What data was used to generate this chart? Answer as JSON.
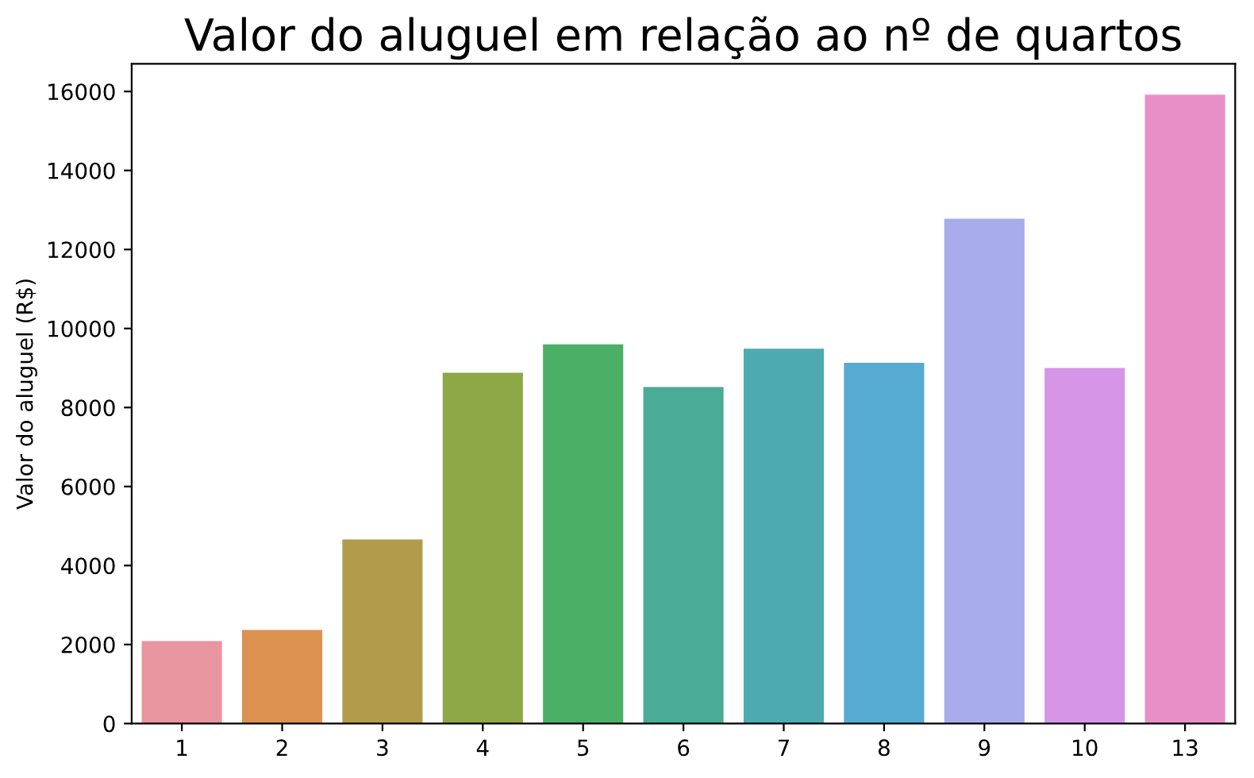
{
  "chart_data": {
    "type": "bar",
    "title": "Valor do aluguel em relação ao nº de quartos",
    "ylabel": "Valor do aluguel (R$)",
    "categories": [
      "1",
      "2",
      "3",
      "4",
      "5",
      "6",
      "7",
      "8",
      "9",
      "10",
      "13"
    ],
    "values": [
      2090,
      2370,
      4660,
      8880,
      9600,
      8520,
      9490,
      9130,
      12780,
      9000,
      15920
    ],
    "colors": [
      "#e8959f",
      "#dc9150",
      "#b29c4b",
      "#8ea747",
      "#4bb066",
      "#4aab96",
      "#4daab1",
      "#55abd2",
      "#a9acea",
      "#d695e6",
      "#e88fc8"
    ],
    "ylim": [
      0,
      16700
    ],
    "yticks": [
      0,
      2000,
      4000,
      6000,
      8000,
      10000,
      12000,
      14000,
      16000
    ],
    "grid": false
  }
}
